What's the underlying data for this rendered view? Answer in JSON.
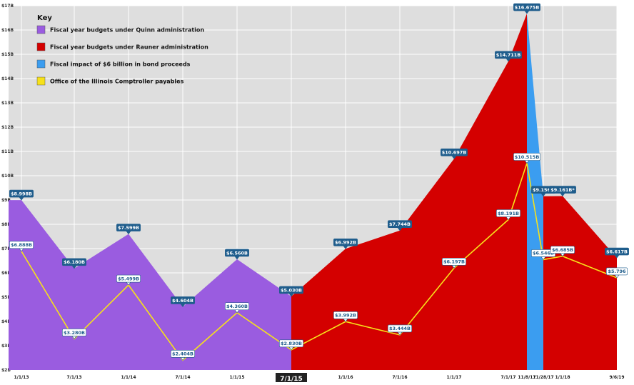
{
  "chart_data": {
    "type": "area",
    "y_ticks": [
      "$17B",
      "$16B",
      "$15B",
      "$14B",
      "$13B",
      "$12B",
      "$11B",
      "$10B",
      "$9B",
      "$8B",
      "$7B",
      "$6B",
      "$5B",
      "$4B",
      "$3B",
      "$2B"
    ],
    "ylim": [
      2,
      17
    ],
    "x_ticks": [
      "1/1/13",
      "7/1/13",
      "1/1/14",
      "7/1/14",
      "1/1/15",
      "7/1/15",
      "1/1/16",
      "7/1/16",
      "1/1/17",
      "7/1/17",
      "11/8/17",
      "11/28/17",
      "1/1/18",
      "9/6/19"
    ],
    "highlight_tick": "7/1/15",
    "key": {
      "title": "Key",
      "items": [
        {
          "label": "Fiscal year budgets under Quinn administration",
          "color": "#9a5ce0"
        },
        {
          "label": "Fiscal year budgets under Rauner administration",
          "color": "#d40000"
        },
        {
          "label": "Fiscal impact of $6 billion in bond proceeds",
          "color": "#3b9df0"
        },
        {
          "label": "Office of the Illinois Comptroller payables",
          "color": "#f7e11a"
        }
      ]
    },
    "colors": {
      "quinn": "#9a5ce0",
      "rauner": "#d40000",
      "bond": "#3b9df0",
      "payables": "#f7e11a",
      "label_bg": "#1f5d8c"
    },
    "series": [
      {
        "name": "Fiscal year budgets under Quinn administration",
        "points": [
          {
            "x": "1/1/13",
            "y": 8.998,
            "label": "$8.998B"
          },
          {
            "x": "7/1/13",
            "y": 6.18,
            "label": "$6.180B"
          },
          {
            "x": "1/1/14",
            "y": 7.599,
            "label": "$7.599B"
          },
          {
            "x": "7/1/14",
            "y": 4.604,
            "label": "$4.604B"
          },
          {
            "x": "1/1/15",
            "y": 6.56,
            "label": "$6.560B"
          },
          {
            "x": "7/1/15",
            "y": 5.03,
            "label": "$5.030B"
          }
        ]
      },
      {
        "name": "Fiscal year budgets under Rauner administration",
        "points": [
          {
            "x": "7/1/15",
            "y": 5.03,
            "label": ""
          },
          {
            "x": "1/1/16",
            "y": 6.992,
            "label": "$6.992B"
          },
          {
            "x": "7/1/16",
            "y": 7.744,
            "label": "$7.744B"
          },
          {
            "x": "1/1/17",
            "y": 10.697,
            "label": "$10.697B"
          },
          {
            "x": "7/1/17",
            "y": 14.711,
            "label": "$14.711B"
          },
          {
            "x": "11/8/17",
            "y": 16.675,
            "label": "$16.675B"
          }
        ]
      },
      {
        "name": "Fiscal impact of $6 billion in bond proceeds",
        "points": [
          {
            "x": "11/8/17",
            "y": 16.675,
            "label": ""
          },
          {
            "x": "11/28/17",
            "y": 9.156,
            "label": "$9.156B"
          }
        ]
      },
      {
        "name": "Fiscal year budgets under Rauner administration (continued)",
        "points": [
          {
            "x": "11/28/17",
            "y": 9.156,
            "label": ""
          },
          {
            "x": "1/1/18",
            "y": 9.161,
            "label": "$9.161B*"
          },
          {
            "x": "9/6/19",
            "y": 6.617,
            "label": "$6.617B"
          }
        ]
      },
      {
        "name": "Office of the Illinois Comptroller payables",
        "points": [
          {
            "x": "1/1/13",
            "y": 6.888,
            "label": "$6.888B"
          },
          {
            "x": "7/1/13",
            "y": 3.28,
            "label": "$3.280B"
          },
          {
            "x": "1/1/14",
            "y": 5.499,
            "label": "$5.499B"
          },
          {
            "x": "7/1/14",
            "y": 2.404,
            "label": "$2.404B"
          },
          {
            "x": "1/1/15",
            "y": 4.36,
            "label": "$4.360B"
          },
          {
            "x": "7/1/15",
            "y": 2.83,
            "label": "$2.830B"
          },
          {
            "x": "1/1/16",
            "y": 3.992,
            "label": "$3.992B"
          },
          {
            "x": "7/1/16",
            "y": 3.444,
            "label": "$3.444B"
          },
          {
            "x": "1/1/17",
            "y": 6.197,
            "label": "$6.197B"
          },
          {
            "x": "7/1/17",
            "y": 8.191,
            "label": "$8.191B"
          },
          {
            "x": "11/8/17",
            "y": 10.515,
            "label": "$10.515B"
          },
          {
            "x": "11/28/17",
            "y": 6.546,
            "label": "$6.546B"
          },
          {
            "x": "1/1/18",
            "y": 6.685,
            "label": "$6.685B"
          },
          {
            "x": "9/6/19",
            "y": 5.796,
            "label": "$5.796"
          }
        ]
      }
    ]
  }
}
